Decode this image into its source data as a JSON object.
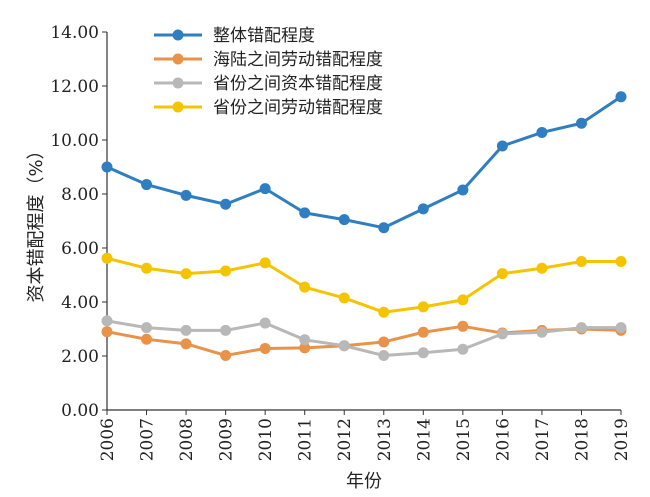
{
  "chart_data": {
    "type": "line",
    "title": "",
    "xlabel": "年份",
    "ylabel": "资本错配程度（%）",
    "x": [
      "2006",
      "2007",
      "2008",
      "2009",
      "2010",
      "2011",
      "2012",
      "2013",
      "2014",
      "2015",
      "2016",
      "2017",
      "2018",
      "2019"
    ],
    "ylim": [
      0,
      14
    ],
    "yticks": [
      "0.00",
      "2.00",
      "4.00",
      "6.00",
      "8.00",
      "10.00",
      "12.00",
      "14.00"
    ],
    "grid": false,
    "legend_position": "top-left",
    "series": [
      {
        "name": "整体错配程度",
        "color": "#2f7ec1",
        "values": [
          9.0,
          8.35,
          7.95,
          7.62,
          8.2,
          7.3,
          7.05,
          6.75,
          7.45,
          8.15,
          9.78,
          10.28,
          10.62,
          11.6
        ]
      },
      {
        "name": "海陆之间劳动错配程度",
        "color": "#e8924a",
        "values": [
          2.9,
          2.62,
          2.45,
          2.02,
          2.28,
          2.3,
          2.38,
          2.52,
          2.88,
          3.1,
          2.85,
          2.95,
          3.0,
          2.95
        ]
      },
      {
        "name": "省份之间资本错配程度",
        "color": "#b8b8b8",
        "values": [
          3.3,
          3.05,
          2.95,
          2.95,
          3.22,
          2.6,
          2.38,
          2.02,
          2.12,
          2.25,
          2.82,
          2.88,
          3.05,
          3.05
        ]
      },
      {
        "name": "省份之间劳动错配程度",
        "color": "#f5c400",
        "values": [
          5.62,
          5.25,
          5.05,
          5.15,
          5.45,
          4.55,
          4.15,
          3.62,
          3.82,
          4.08,
          5.05,
          5.25,
          5.5,
          5.5
        ]
      }
    ]
  }
}
